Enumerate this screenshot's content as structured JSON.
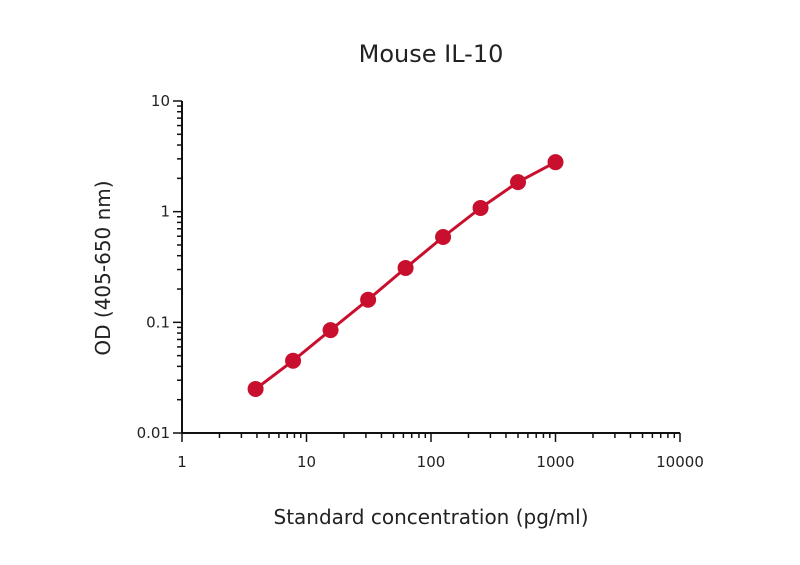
{
  "chart_data": {
    "type": "line",
    "title": "Mouse IL-10",
    "xlabel": "Standard concentration (pg/ml)",
    "ylabel": "OD (405-650 nm)",
    "x_scale": "log",
    "y_scale": "log",
    "xlim": [
      1,
      10000
    ],
    "ylim": [
      0.01,
      10
    ],
    "x_ticks": [
      "1",
      "10",
      "100",
      "1000",
      "10000"
    ],
    "y_ticks": [
      "0.01",
      "0.1",
      "1",
      "10"
    ],
    "grid": false,
    "legend": "none",
    "series": [
      {
        "color": "#c8102e",
        "x": [
          3.9,
          7.8,
          15.6,
          31.25,
          62.5,
          125,
          250,
          500,
          1000
        ],
        "y": [
          0.025,
          0.045,
          0.085,
          0.16,
          0.31,
          0.59,
          1.08,
          1.85,
          2.8
        ]
      }
    ]
  }
}
